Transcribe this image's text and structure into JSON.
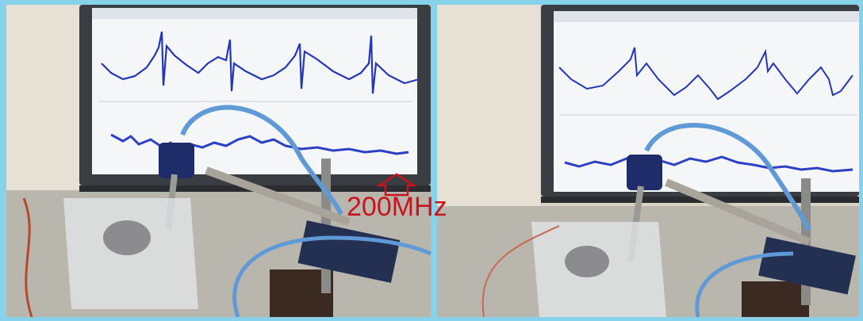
{
  "annotation": {
    "label": "200MHz"
  }
}
